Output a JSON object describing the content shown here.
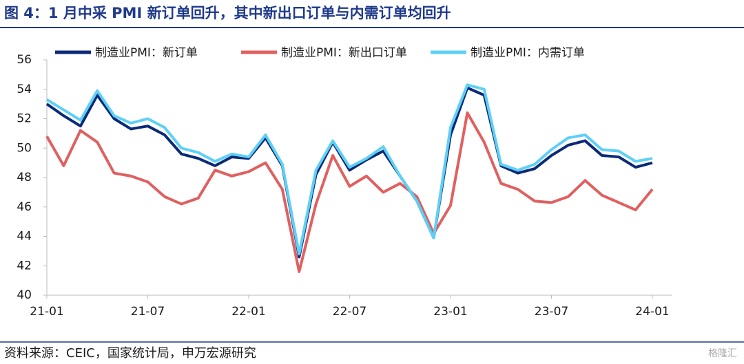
{
  "chart_data": {
    "type": "line",
    "title": "图 4：1 月中采 PMI 新订单回升，其中新出口订单与内需订单均回升",
    "source": "资料来源：CEIC，国家统计局，申万宏源研究",
    "watermark": "格隆汇",
    "categories": [
      "21-01",
      null,
      null,
      null,
      null,
      null,
      "21-07",
      null,
      null,
      null,
      null,
      null,
      "22-01",
      null,
      null,
      null,
      null,
      null,
      "22-07",
      null,
      null,
      null,
      null,
      null,
      "23-01",
      null,
      null,
      null,
      null,
      null,
      "23-07",
      null,
      null,
      null,
      null,
      null,
      "24-01"
    ],
    "series": [
      {
        "name": "制造业PMI：新订单",
        "color": "#0b2a78",
        "values": [
          53.0,
          52.2,
          51.5,
          53.6,
          52.0,
          51.3,
          51.5,
          50.9,
          49.6,
          49.3,
          48.8,
          49.4,
          49.3,
          50.7,
          48.8,
          42.6,
          48.2,
          50.4,
          48.5,
          49.2,
          49.8,
          48.1,
          46.4,
          43.9,
          50.9,
          54.1,
          53.6,
          48.8,
          48.3,
          48.6,
          49.5,
          50.2,
          50.5,
          49.5,
          49.4,
          48.7,
          49.0
        ]
      },
      {
        "name": "制造业PMI：新出口订单",
        "color": "#e06060",
        "values": [
          50.8,
          48.8,
          51.2,
          50.4,
          48.3,
          48.1,
          47.7,
          46.7,
          46.2,
          46.6,
          48.5,
          48.1,
          48.4,
          49.0,
          47.2,
          41.6,
          46.2,
          49.5,
          47.4,
          48.1,
          47.0,
          47.6,
          46.7,
          44.2,
          46.1,
          52.4,
          50.4,
          47.6,
          47.2,
          46.4,
          46.3,
          46.7,
          47.8,
          46.8,
          46.3,
          45.8,
          47.2
        ]
      },
      {
        "name": "制造业PMI：内需订单",
        "color": "#5fd0f5",
        "values": [
          53.3,
          52.6,
          51.9,
          53.9,
          52.2,
          51.7,
          52.0,
          51.4,
          50.0,
          49.7,
          49.1,
          49.6,
          49.4,
          50.9,
          48.9,
          42.8,
          48.5,
          50.5,
          48.7,
          49.3,
          50.1,
          48.1,
          46.4,
          43.9,
          51.4,
          54.3,
          54.0,
          48.9,
          48.5,
          48.9,
          49.9,
          50.7,
          50.9,
          49.9,
          49.8,
          49.1,
          49.3
        ]
      }
    ],
    "ylim": [
      40,
      56
    ],
    "yticks": [
      40,
      42,
      44,
      46,
      48,
      50,
      52,
      54,
      56
    ]
  }
}
